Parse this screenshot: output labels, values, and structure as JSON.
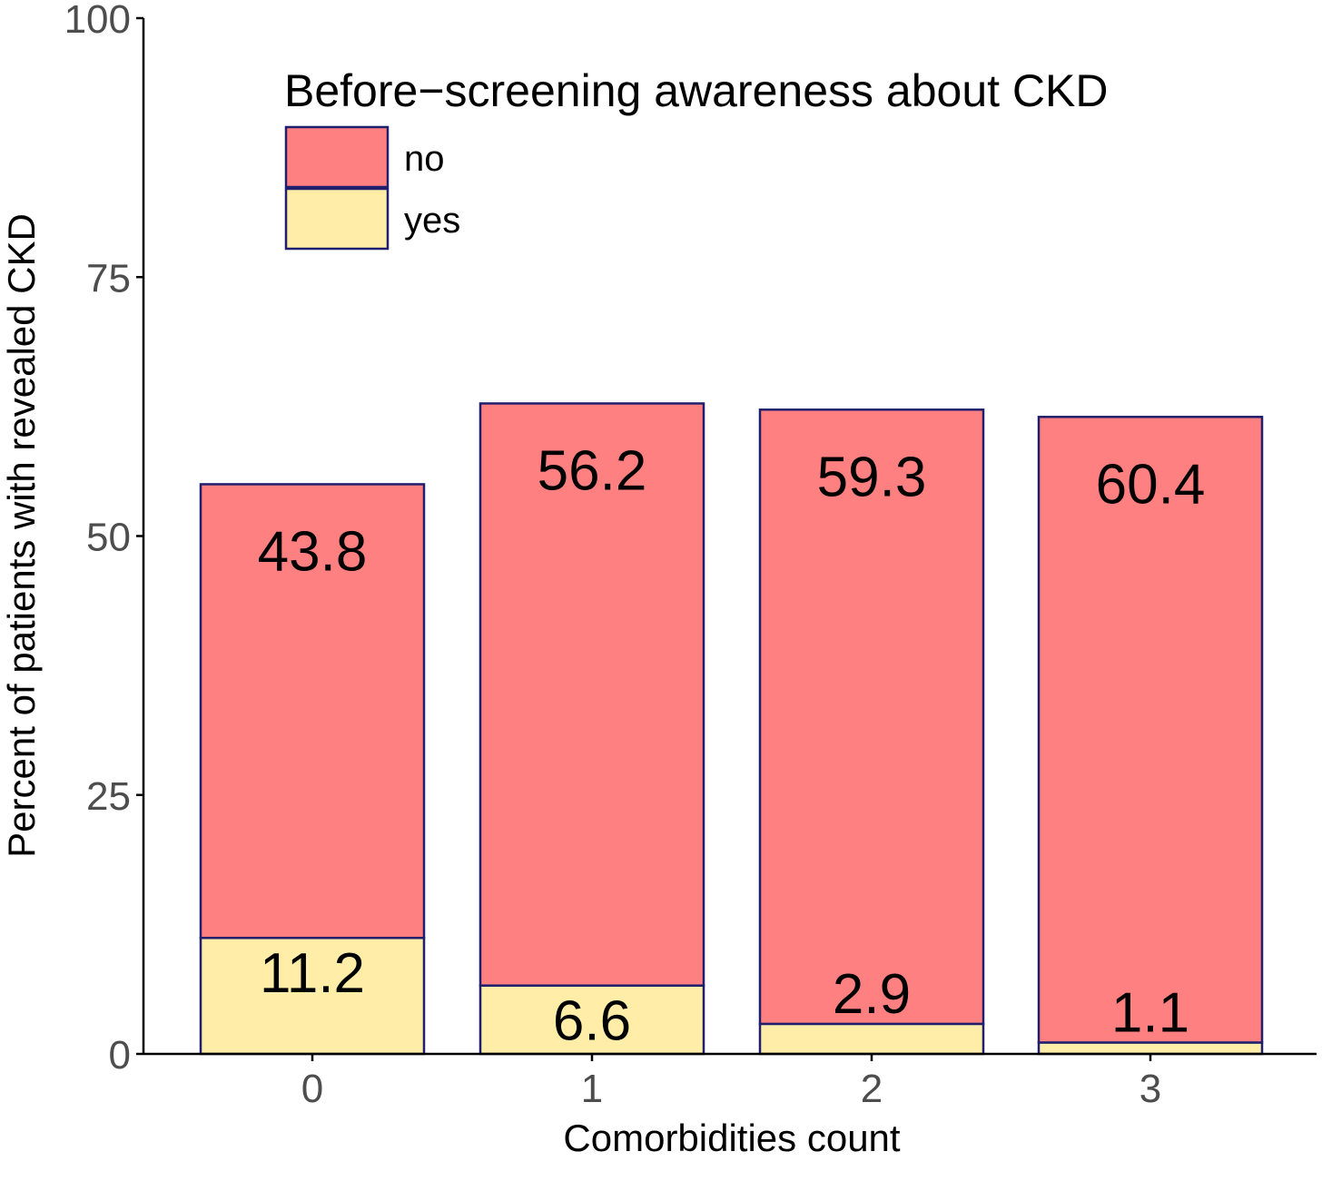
{
  "chart_data": {
    "type": "bar",
    "stacked": true,
    "categories": [
      "0",
      "1",
      "2",
      "3"
    ],
    "series": [
      {
        "name": "yes",
        "values": [
          11.2,
          6.6,
          2.9,
          1.1
        ],
        "color": "#FFEDA8"
      },
      {
        "name": "no",
        "values": [
          43.8,
          56.2,
          59.3,
          60.4
        ],
        "color": "#FF8080"
      }
    ],
    "bar_outline_color": "#1F1F6E",
    "title": "",
    "xlabel": "Comorbidities count",
    "ylabel": "Percent of patients with revealed CKD",
    "ylim": [
      0,
      100
    ],
    "yticks": [
      0,
      25,
      50,
      75,
      100
    ],
    "grid": false,
    "legend": {
      "title": "Before−screening awareness about CKD",
      "placement": "top-left",
      "entries": [
        "no",
        "yes"
      ]
    }
  }
}
